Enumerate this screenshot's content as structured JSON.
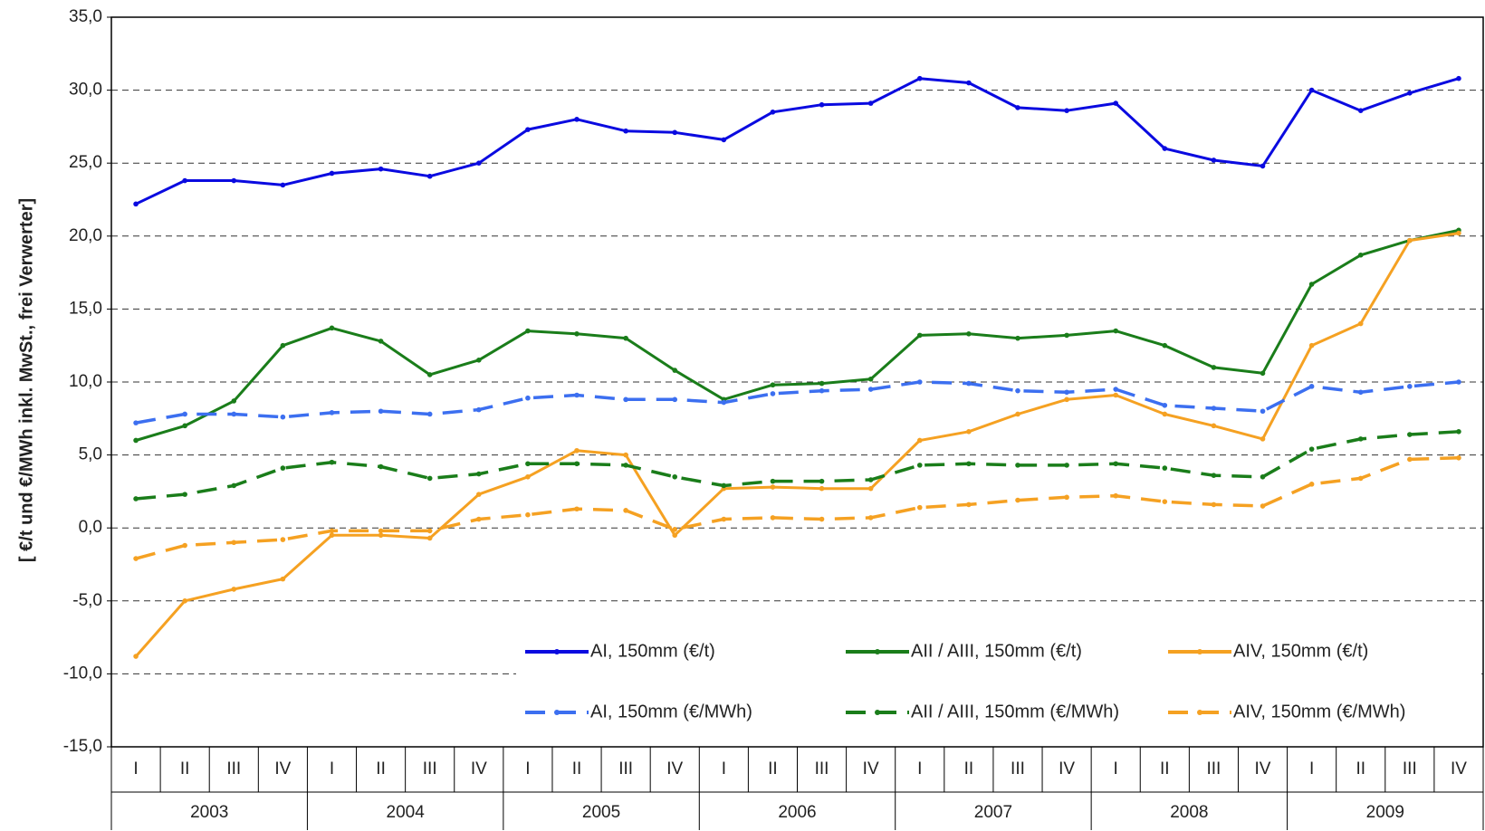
{
  "chart_data": {
    "type": "line",
    "y_label": "[ €/t und €/MWh inkl. MwSt., frei Verwerter]",
    "categories": [
      "I",
      "II",
      "III",
      "IV",
      "I",
      "II",
      "III",
      "IV",
      "I",
      "II",
      "III",
      "IV",
      "I",
      "II",
      "III",
      "IV",
      "I",
      "II",
      "III",
      "IV",
      "I",
      "II",
      "III",
      "IV",
      "I",
      "II",
      "III",
      "IV"
    ],
    "groups": [
      "2003",
      "2004",
      "2005",
      "2006",
      "2007",
      "2008",
      "2009"
    ],
    "ylim": [
      -15,
      35
    ],
    "yticks": [
      {
        "value": 35,
        "label": "35,0"
      },
      {
        "value": 30,
        "label": "30,0"
      },
      {
        "value": 25,
        "label": "25,0"
      },
      {
        "value": 20,
        "label": "20,0"
      },
      {
        "value": 15,
        "label": "15,0"
      },
      {
        "value": 10,
        "label": "10,0"
      },
      {
        "value": 5,
        "label": "5,0"
      },
      {
        "value": 0,
        "label": "0,0"
      },
      {
        "value": -5,
        "label": "-5,0"
      },
      {
        "value": -10,
        "label": "-10,0"
      },
      {
        "value": -15,
        "label": "-15,0"
      }
    ],
    "grid": true,
    "series": [
      {
        "name": "AI, 150mm (€/t)",
        "color": "#0a0ae0",
        "dash": false,
        "values": [
          22.2,
          23.8,
          23.8,
          23.5,
          24.3,
          24.6,
          24.1,
          25.0,
          27.3,
          28.0,
          27.2,
          27.1,
          26.6,
          28.5,
          29.0,
          29.1,
          30.8,
          30.5,
          28.8,
          28.6,
          29.1,
          26.0,
          25.2,
          24.8,
          30.0,
          28.6,
          29.8,
          30.8
        ]
      },
      {
        "name": "AII / AIII, 150mm (€/t)",
        "color": "#1a7d1a",
        "dash": false,
        "values": [
          6.0,
          7.0,
          8.7,
          12.5,
          13.7,
          12.8,
          10.5,
          11.5,
          13.5,
          13.3,
          13.0,
          10.8,
          8.8,
          9.8,
          9.9,
          10.2,
          13.2,
          13.3,
          13.0,
          13.2,
          13.5,
          12.5,
          11.0,
          10.6,
          16.7,
          18.7,
          19.7,
          20.4
        ]
      },
      {
        "name": "AIV, 150mm (€/t)",
        "color": "#f5a122",
        "dash": false,
        "values": [
          -8.8,
          -5.0,
          -4.2,
          -3.5,
          -0.5,
          -0.5,
          -0.7,
          2.3,
          3.5,
          5.3,
          5.0,
          -0.5,
          2.7,
          2.8,
          2.7,
          2.7,
          6.0,
          6.6,
          7.8,
          8.8,
          9.1,
          7.8,
          7.0,
          6.1,
          12.5,
          14.0,
          19.7,
          20.2
        ]
      },
      {
        "name": "AI, 150mm (€/MWh)",
        "color": "#3c6ff0",
        "dash": true,
        "values": [
          7.2,
          7.8,
          7.8,
          7.6,
          7.9,
          8.0,
          7.8,
          8.1,
          8.9,
          9.1,
          8.8,
          8.8,
          8.6,
          9.2,
          9.4,
          9.5,
          10.0,
          9.9,
          9.4,
          9.3,
          9.5,
          8.4,
          8.2,
          8.0,
          9.7,
          9.3,
          9.7,
          10.0
        ]
      },
      {
        "name": "AII / AIII, 150mm (€/MWh)",
        "color": "#1a7d1a",
        "dash": true,
        "values": [
          2.0,
          2.3,
          2.9,
          4.1,
          4.5,
          4.2,
          3.4,
          3.7,
          4.4,
          4.4,
          4.3,
          3.5,
          2.9,
          3.2,
          3.2,
          3.3,
          4.3,
          4.4,
          4.3,
          4.3,
          4.4,
          4.1,
          3.6,
          3.5,
          5.4,
          6.1,
          6.4,
          6.6
        ]
      },
      {
        "name": "AIV, 150mm (€/MWh)",
        "color": "#f5a122",
        "dash": true,
        "values": [
          -2.1,
          -1.2,
          -1.0,
          -0.8,
          -0.2,
          -0.2,
          -0.2,
          0.6,
          0.9,
          1.3,
          1.2,
          -0.1,
          0.6,
          0.7,
          0.6,
          0.7,
          1.4,
          1.6,
          1.9,
          2.1,
          2.2,
          1.8,
          1.6,
          1.5,
          3.0,
          3.4,
          4.7,
          4.8
        ]
      }
    ]
  }
}
